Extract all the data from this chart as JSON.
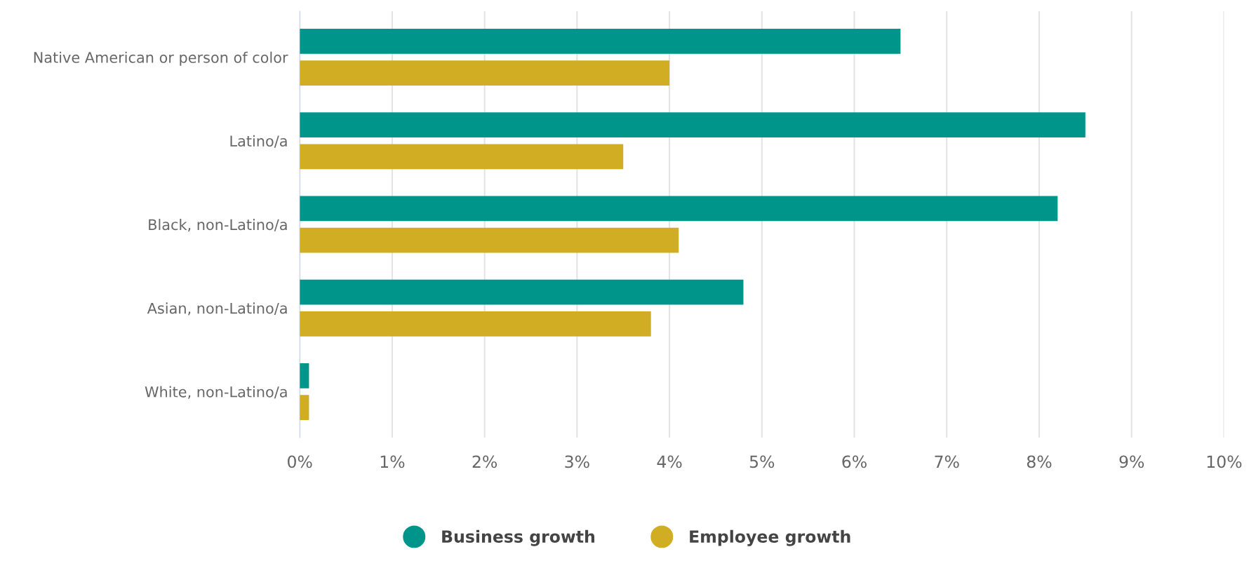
{
  "chart_data": {
    "type": "bar",
    "orientation": "horizontal",
    "categories": [
      "Native American or person of color",
      "Latino/a",
      "Black, non-Latino/a",
      "Asian, non-Latino/a",
      "White, non-Latino/a"
    ],
    "series": [
      {
        "name": "Business growth",
        "color": "#00958a",
        "values": [
          6.5,
          8.5,
          8.2,
          4.8,
          0.1
        ]
      },
      {
        "name": "Employee growth",
        "color": "#d1ad24",
        "values": [
          4.0,
          3.5,
          4.1,
          3.8,
          0.1
        ]
      }
    ],
    "xlim": [
      0,
      10
    ],
    "xticks": [
      {
        "value": 0,
        "label": "0%"
      },
      {
        "value": 1,
        "label": "1%"
      },
      {
        "value": 2,
        "label": "2%"
      },
      {
        "value": 3,
        "label": "3%"
      },
      {
        "value": 4,
        "label": "4%"
      },
      {
        "value": 5,
        "label": "5%"
      },
      {
        "value": 6,
        "label": "6%"
      },
      {
        "value": 7,
        "label": "7%"
      },
      {
        "value": 8,
        "label": "8%"
      },
      {
        "value": 9,
        "label": "9%"
      },
      {
        "value": 10,
        "label": "10%"
      }
    ],
    "grid": "x",
    "legend": "bottom",
    "marker": "circle"
  }
}
